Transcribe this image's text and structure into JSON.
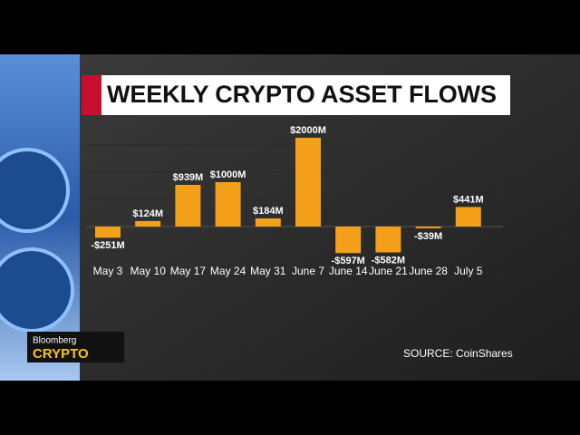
{
  "chart_data": {
    "type": "bar",
    "title": "WEEKLY CRYPTO ASSET FLOWS",
    "categories": [
      "May 3",
      "May 10",
      "May 17",
      "May 24",
      "May 31",
      "June 7",
      "June 14",
      "June 21",
      "June 28",
      "July 5"
    ],
    "values": [
      -251,
      124,
      939,
      1000,
      184,
      2000,
      -597,
      -582,
      -39,
      441
    ],
    "value_labels": [
      "-$251M",
      "$124M",
      "$939M",
      "$1000M",
      "$184M",
      "$2000M",
      "-$597M",
      "-$582M",
      "-$39M",
      "$441M"
    ],
    "color": "#f5a01a",
    "source": "SOURCE: CoinShares"
  },
  "branding": {
    "network": "Bloomberg",
    "show": "CRYPTO"
  }
}
